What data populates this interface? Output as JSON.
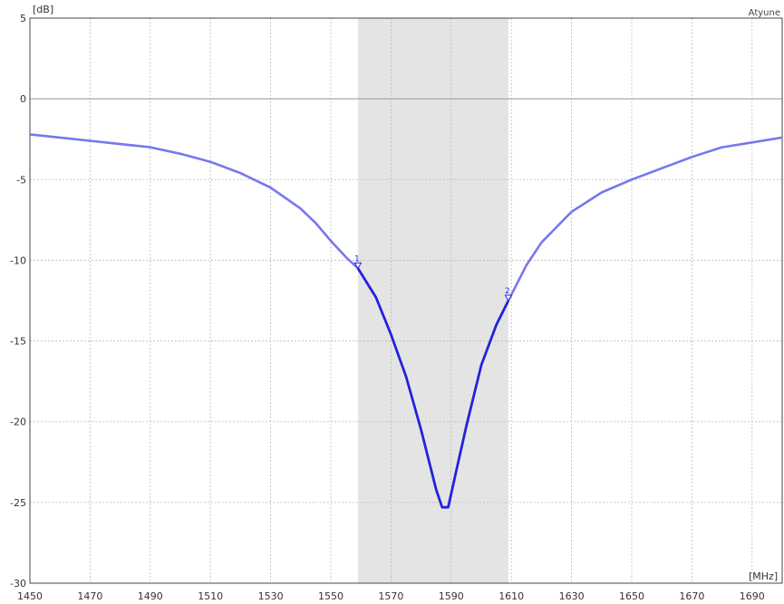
{
  "chart_data": {
    "type": "line",
    "title": "",
    "brand_label": "Atyune",
    "ylabel": "[dB]",
    "xlabel": "[MHz]",
    "xlim": [
      1450,
      1700
    ],
    "ylim": [
      -30,
      5
    ],
    "x_ticks": [
      1450,
      1470,
      1490,
      1510,
      1530,
      1550,
      1570,
      1590,
      1610,
      1630,
      1650,
      1670,
      1690
    ],
    "y_ticks": [
      5,
      0,
      -5,
      -10,
      -15,
      -20,
      -25,
      -30
    ],
    "grid": true,
    "highlight_band": {
      "x_start": 1559,
      "x_end": 1609,
      "color": "#e4e4e4"
    },
    "colors": {
      "in_band": "#2222dd",
      "out_band": "#7777ee",
      "band": "#e4e4e4",
      "axis": "#444444",
      "grid": "#bbbbbb",
      "zero_line": "#999999"
    },
    "series": [
      {
        "x": [
          1450,
          1460,
          1470,
          1480,
          1490,
          1500,
          1510,
          1520,
          1530,
          1540,
          1545,
          1550,
          1555,
          1559,
          1565,
          1570,
          1575,
          1580,
          1585,
          1587,
          1589,
          1592,
          1595,
          1600,
          1605,
          1609,
          1615,
          1620,
          1630,
          1640,
          1650,
          1660,
          1670,
          1680,
          1690,
          1700
        ],
        "y": [
          -2.2,
          -2.4,
          -2.6,
          -2.8,
          -3.0,
          -3.4,
          -3.9,
          -4.6,
          -5.5,
          -6.8,
          -7.7,
          -8.8,
          -9.8,
          -10.5,
          -12.3,
          -14.6,
          -17.2,
          -20.5,
          -24.2,
          -25.3,
          -25.3,
          -22.8,
          -20.3,
          -16.5,
          -14.0,
          -12.5,
          -10.3,
          -8.9,
          -7.0,
          -5.8,
          -5.0,
          -4.3,
          -3.6,
          -3.0,
          -2.7,
          -2.4
        ]
      }
    ],
    "markers": [
      {
        "label": "1",
        "x": 1559,
        "y": -10.5
      },
      {
        "label": "2",
        "x": 1609,
        "y": -12.5
      }
    ]
  }
}
